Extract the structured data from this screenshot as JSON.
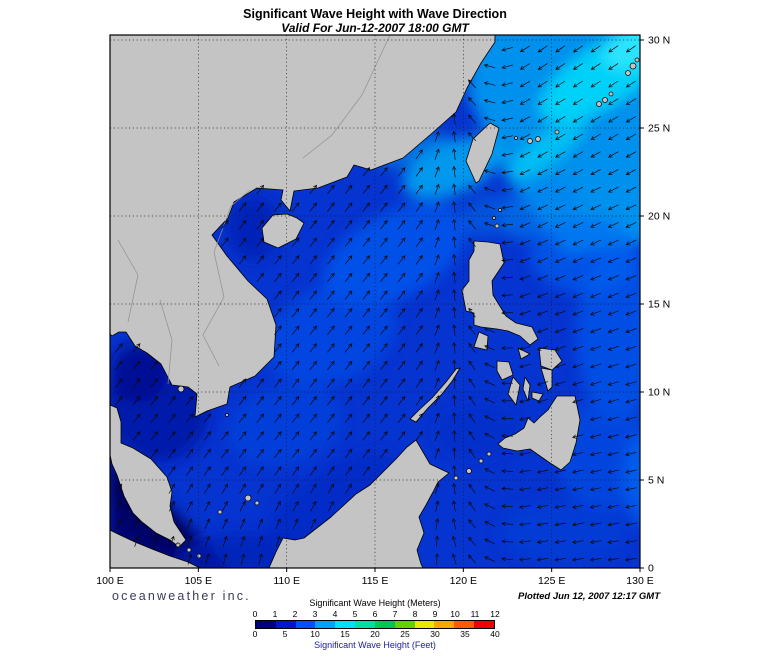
{
  "header": {
    "title": "Significant Wave Height with Wave Direction",
    "subtitle": "Valid For Jun-12-2007 18:00 GMT"
  },
  "map": {
    "lon_ticks": [
      "100 E",
      "105 E",
      "110 E",
      "115 E",
      "120 E",
      "125 E",
      "130 E"
    ],
    "lat_ticks": [
      "0",
      "5 N",
      "10 N",
      "15 N",
      "20 N",
      "25 N",
      "30 N"
    ],
    "extent": {
      "lon_min": 100,
      "lon_max": 130,
      "lat_min": 0,
      "lat_max": 30
    }
  },
  "legend": {
    "meters_label": "Significant Wave Height (Meters)",
    "feet_label": "Significant Wave Height (Feet)",
    "meters_ticks": [
      "0",
      "1",
      "2",
      "3",
      "4",
      "5",
      "6",
      "7",
      "8",
      "9",
      "10",
      "11",
      "12"
    ],
    "feet_ticks": [
      "0",
      "5",
      "10",
      "15",
      "20",
      "25",
      "30",
      "35",
      "40"
    ],
    "colors": [
      "#000082",
      "#0018c8",
      "#0050ff",
      "#00a0ff",
      "#00e0ff",
      "#00e0a0",
      "#00c850",
      "#64d200",
      "#e8e800",
      "#ffa500",
      "#ff5a00",
      "#f00000"
    ]
  },
  "footer": {
    "brand": "oceanweather inc.",
    "plotted": "Plotted Jun 12, 2007 12:17 GMT"
  },
  "colors": {
    "land": "#c4c4c4",
    "coastline": "#000000",
    "ocean_base": "#0634d0",
    "arrow": "#0a0a0a",
    "grid": "#1a1a1a",
    "brand_text": "#3a3a58",
    "feet_label_text": "#1c1ca0"
  }
}
